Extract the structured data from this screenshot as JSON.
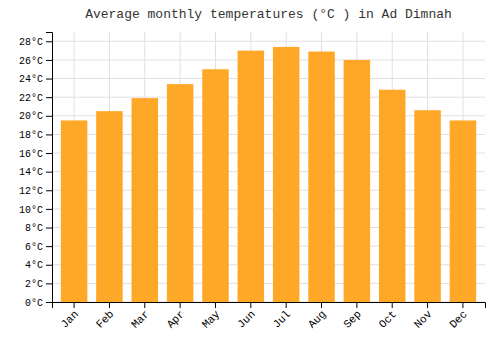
{
  "chart_data": {
    "type": "bar",
    "title": "Average monthly temperatures (°C ) in Ad Dimnah",
    "categories": [
      "Jan",
      "Feb",
      "Mar",
      "Apr",
      "May",
      "Jun",
      "Jul",
      "Aug",
      "Sep",
      "Oct",
      "Nov",
      "Dec"
    ],
    "values": [
      19.5,
      20.5,
      21.9,
      23.4,
      25.0,
      27.0,
      27.4,
      26.9,
      26.0,
      22.8,
      20.6,
      19.5
    ],
    "color": "#FFA726",
    "ylim": [
      0,
      29
    ],
    "yticks": [
      {
        "value": 0,
        "label": "0°C"
      },
      {
        "value": 2,
        "label": "2°C"
      },
      {
        "value": 4,
        "label": "4°C"
      },
      {
        "value": 6,
        "label": "6°C"
      },
      {
        "value": 8,
        "label": "8°C"
      },
      {
        "value": 10,
        "label": "10°C"
      },
      {
        "value": 12,
        "label": "12°C"
      },
      {
        "value": 14,
        "label": "14°C"
      },
      {
        "value": 16,
        "label": "16°C"
      },
      {
        "value": 18,
        "label": "18°C"
      },
      {
        "value": 20,
        "label": "20°C"
      },
      {
        "value": 22,
        "label": "22°C"
      },
      {
        "value": 24,
        "label": "24°C"
      },
      {
        "value": 26,
        "label": "26°C"
      },
      {
        "value": 28,
        "label": "28°C"
      }
    ],
    "grid": true
  }
}
